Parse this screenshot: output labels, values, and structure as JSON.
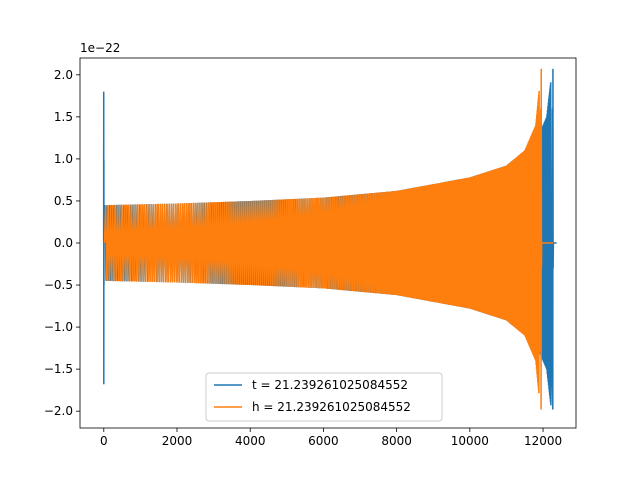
{
  "chart_data": {
    "type": "line",
    "title": "",
    "xlabel": "",
    "ylabel": "",
    "y_offset_label": "1e−22",
    "xlim": [
      -650,
      12900
    ],
    "ylim": [
      -2.2,
      2.2
    ],
    "x_ticks": [
      0,
      2000,
      4000,
      6000,
      8000,
      10000,
      12000
    ],
    "x_tick_labels": [
      "0",
      "2000",
      "4000",
      "6000",
      "8000",
      "10000",
      "12000"
    ],
    "y_ticks": [
      -2.0,
      -1.5,
      -1.0,
      -0.5,
      0.0,
      0.5,
      1.0,
      1.5,
      2.0
    ],
    "y_tick_labels": [
      "−2.0",
      "−1.5",
      "−1.0",
      "−0.5",
      "0.0",
      "0.5",
      "1.0",
      "1.5",
      "2.0"
    ],
    "grid": false,
    "legend_position": "lower center",
    "series": [
      {
        "name": "t = 21.239261025084552",
        "color": "#1f77b4",
        "start_spike": {
          "x": 0,
          "max": 1.8,
          "min": -1.68,
          "secondary": 0.98
        },
        "envelope_points": [
          [
            0,
            0.45
          ],
          [
            2000,
            0.47
          ],
          [
            4000,
            0.5
          ],
          [
            6000,
            0.54
          ],
          [
            8000,
            0.62
          ],
          [
            10000,
            0.78
          ],
          [
            11000,
            0.92
          ],
          [
            11800,
            1.2
          ],
          [
            12100,
            1.5
          ],
          [
            12250,
            2.07
          ]
        ],
        "merger": {
          "x": 12270,
          "max": 2.07,
          "min": -1.98
        },
        "end_x": 12370
      },
      {
        "name": "h = 21.239261025084552",
        "color": "#ff7f0e",
        "envelope_points": [
          [
            20,
            0.45
          ],
          [
            2000,
            0.47
          ],
          [
            4000,
            0.5
          ],
          [
            6000,
            0.54
          ],
          [
            8000,
            0.62
          ],
          [
            10000,
            0.78
          ],
          [
            11000,
            0.92
          ],
          [
            11500,
            1.1
          ],
          [
            11800,
            1.4
          ],
          [
            11950,
            2.07
          ]
        ],
        "merger": {
          "x": 11950,
          "max": 2.07,
          "min": -1.98
        },
        "end_x": 12280
      }
    ]
  }
}
